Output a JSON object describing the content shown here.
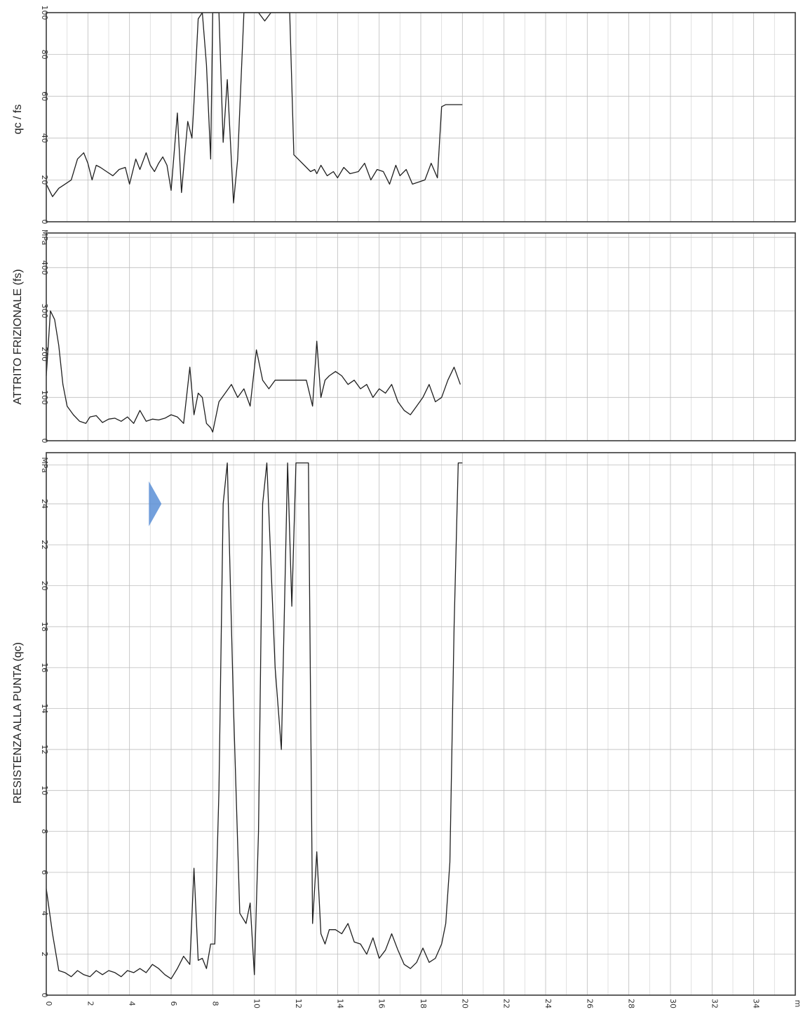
{
  "colors": {
    "line": "#1f1f1f",
    "grid": "#bdbdbd",
    "frame": "#3a3a3a",
    "marker": "#5b8fd6"
  },
  "chart_data": [
    {
      "type": "line",
      "panel": "qc-over-fs",
      "ylabel": "qc / fs",
      "ylim": [
        0,
        100
      ],
      "y_ticks": [
        "0",
        "20",
        "40",
        "60",
        "80",
        "100"
      ],
      "y_tick_values": [
        0,
        20,
        40,
        60,
        80,
        100
      ],
      "unit": "",
      "clip_max": 100,
      "series": [
        {
          "x": [
            0,
            0.3,
            0.6,
            0.9,
            1.2,
            1.5,
            1.8,
            2.0,
            2.2,
            2.4,
            2.6,
            2.9,
            3.2,
            3.5,
            3.8,
            4.0,
            4.3,
            4.5,
            4.8,
            5.0,
            5.2,
            5.4,
            5.6,
            5.8,
            6.0,
            6.3,
            6.5,
            6.8,
            7.0,
            7.1,
            7.3,
            7.5,
            7.7,
            7.9,
            8.0,
            8.1,
            8.3,
            8.5,
            8.7,
            9.0,
            9.2,
            9.5,
            9.7,
            9.9,
            10.0,
            10.2,
            10.5,
            10.8,
            11.0,
            11.3,
            11.5,
            11.7,
            11.9,
            12.1,
            12.4,
            12.7,
            12.9,
            13.0,
            13.2,
            13.5,
            13.8,
            14.0,
            14.3,
            14.6,
            15.0,
            15.3,
            15.6,
            15.9,
            16.2,
            16.5,
            16.8,
            17.0,
            17.3,
            17.6,
            17.9,
            18.2,
            18.5,
            18.8,
            19.0,
            19.2,
            19.4,
            19.6,
            19.8,
            20.0
          ],
          "y": [
            18,
            12,
            16,
            18,
            20,
            30,
            33,
            28,
            20,
            27,
            26,
            24,
            22,
            25,
            26,
            18,
            30,
            25,
            33,
            27,
            24,
            28,
            31,
            27,
            15,
            52,
            14,
            48,
            40,
            57,
            97,
            100,
            75,
            30,
            100,
            100,
            100,
            38,
            68,
            9,
            30,
            100,
            100,
            100,
            100,
            100,
            96,
            100,
            100,
            100,
            100,
            100,
            32,
            30,
            27,
            24,
            25,
            23,
            27,
            22,
            24,
            21,
            26,
            23,
            24,
            28,
            20,
            25,
            24,
            18,
            27,
            22,
            25,
            18,
            19,
            20,
            28,
            21,
            55,
            56,
            56,
            56,
            56,
            56
          ],
          "x_end": 19.8
        }
      ]
    },
    {
      "type": "line",
      "panel": "friction",
      "ylabel": "ATTRITO FRIZIONALE (fs)",
      "ylim": [
        0,
        480
      ],
      "y_ticks": [
        "0",
        "100",
        "200",
        "300",
        "400",
        "MPa"
      ],
      "y_tick_values": [
        0,
        100,
        200,
        300,
        400,
        470
      ],
      "unit": "MPa",
      "clip_max": 480,
      "series": [
        {
          "x": [
            0,
            0.2,
            0.4,
            0.6,
            0.8,
            1.0,
            1.3,
            1.6,
            1.9,
            2.1,
            2.4,
            2.7,
            3.0,
            3.3,
            3.6,
            3.9,
            4.2,
            4.5,
            4.8,
            5.1,
            5.4,
            5.7,
            6.0,
            6.3,
            6.6,
            6.9,
            7.1,
            7.3,
            7.5,
            7.7,
            7.9,
            8.0,
            8.3,
            8.6,
            8.9,
            9.2,
            9.5,
            9.8,
            10.1,
            10.4,
            10.7,
            11.0,
            11.3,
            11.6,
            11.9,
            12.2,
            12.5,
            12.8,
            13.0,
            13.2,
            13.4,
            13.6,
            13.9,
            14.2,
            14.5,
            14.8,
            15.1,
            15.4,
            15.7,
            16.0,
            16.3,
            16.6,
            16.9,
            17.2,
            17.5,
            17.8,
            18.1,
            18.4,
            18.7,
            19.0,
            19.3,
            19.6,
            19.9
          ],
          "y": [
            150,
            300,
            280,
            220,
            130,
            80,
            60,
            45,
            40,
            55,
            58,
            42,
            50,
            52,
            45,
            55,
            40,
            70,
            45,
            50,
            48,
            52,
            60,
            55,
            40,
            170,
            60,
            110,
            100,
            40,
            30,
            20,
            90,
            110,
            130,
            100,
            120,
            80,
            210,
            140,
            120,
            140,
            140,
            140,
            140,
            140,
            140,
            80,
            230,
            100,
            140,
            150,
            160,
            150,
            130,
            140,
            120,
            130,
            100,
            120,
            110,
            130,
            90,
            70,
            60,
            80,
            100,
            130,
            90,
            100,
            140,
            170,
            130
          ],
          "x_end": 19.8
        }
      ]
    },
    {
      "type": "line",
      "panel": "tip-resistance",
      "ylabel": "RESISTENZA ALLA PUNTA (qc)",
      "ylim": [
        0,
        26.5
      ],
      "y_ticks": [
        "0",
        "2",
        "4",
        "6",
        "8",
        "10",
        "12",
        "14",
        "16",
        "18",
        "20",
        "22",
        "24",
        "MPa"
      ],
      "y_tick_values": [
        0,
        2,
        4,
        6,
        8,
        10,
        12,
        14,
        16,
        18,
        20,
        22,
        24,
        25.9
      ],
      "unit": "MPa",
      "clip_max": 26,
      "series": [
        {
          "x": [
            0,
            0.3,
            0.6,
            0.9,
            1.2,
            1.5,
            1.8,
            2.1,
            2.4,
            2.7,
            3.0,
            3.3,
            3.6,
            3.9,
            4.2,
            4.5,
            4.8,
            5.1,
            5.4,
            5.7,
            6.0,
            6.3,
            6.6,
            6.9,
            7.1,
            7.3,
            7.5,
            7.7,
            7.9,
            8.1,
            8.3,
            8.5,
            8.7,
            9.0,
            9.3,
            9.6,
            9.8,
            10.0,
            10.2,
            10.4,
            10.6,
            10.8,
            11.0,
            11.3,
            11.6,
            11.8,
            12.0,
            12.2,
            12.4,
            12.6,
            12.8,
            13.0,
            13.2,
            13.4,
            13.6,
            13.9,
            14.2,
            14.5,
            14.8,
            15.1,
            15.4,
            15.7,
            16.0,
            16.3,
            16.6,
            16.9,
            17.2,
            17.5,
            17.8,
            18.1,
            18.4,
            18.7,
            19.0,
            19.2,
            19.4,
            19.6,
            19.8,
            19.9,
            20.0
          ],
          "y": [
            5.2,
            3,
            1.2,
            1.1,
            0.9,
            1.2,
            1.0,
            0.9,
            1.2,
            1.0,
            1.2,
            1.1,
            0.9,
            1.2,
            1.1,
            1.3,
            1.1,
            1.5,
            1.3,
            1.0,
            0.8,
            1.3,
            1.9,
            1.5,
            6.2,
            1.7,
            1.8,
            1.3,
            2.5,
            2.5,
            10,
            24,
            26,
            14,
            4,
            3.5,
            4.5,
            1,
            8,
            24,
            26,
            21,
            16,
            12,
            26,
            19,
            26,
            26,
            26,
            26,
            3.5,
            7,
            3,
            2.5,
            3.2,
            3.2,
            3,
            3.5,
            2.6,
            2.5,
            2.0,
            2.8,
            1.8,
            2.2,
            3.0,
            2.2,
            1.5,
            1.3,
            1.6,
            2.3,
            1.6,
            1.8,
            2.5,
            3.5,
            6.5,
            18,
            26,
            26,
            26
          ],
          "x_end": 19.9
        }
      ],
      "marker": {
        "shape": "triangle-right",
        "x": 5.2,
        "y": 24
      }
    }
  ],
  "x_axis": {
    "xlim": [
      0,
      36
    ],
    "ticks": [
      "0",
      "2",
      "4",
      "6",
      "8",
      "10",
      "12",
      "14",
      "16",
      "18",
      "20",
      "22",
      "24",
      "26",
      "28",
      "30",
      "32",
      "34",
      "m"
    ],
    "tick_values": [
      0,
      2,
      4,
      6,
      8,
      10,
      12,
      14,
      16,
      18,
      20,
      22,
      24,
      26,
      28,
      30,
      32,
      34,
      36
    ],
    "minor_step": 1
  },
  "axis_labels": {
    "panel1_title": "qc / fs",
    "panel2_title": "ATTRITO FRIZIONALE (fs)",
    "panel3_title": "RESISTENZA ALLA PUNTA (qc)"
  }
}
